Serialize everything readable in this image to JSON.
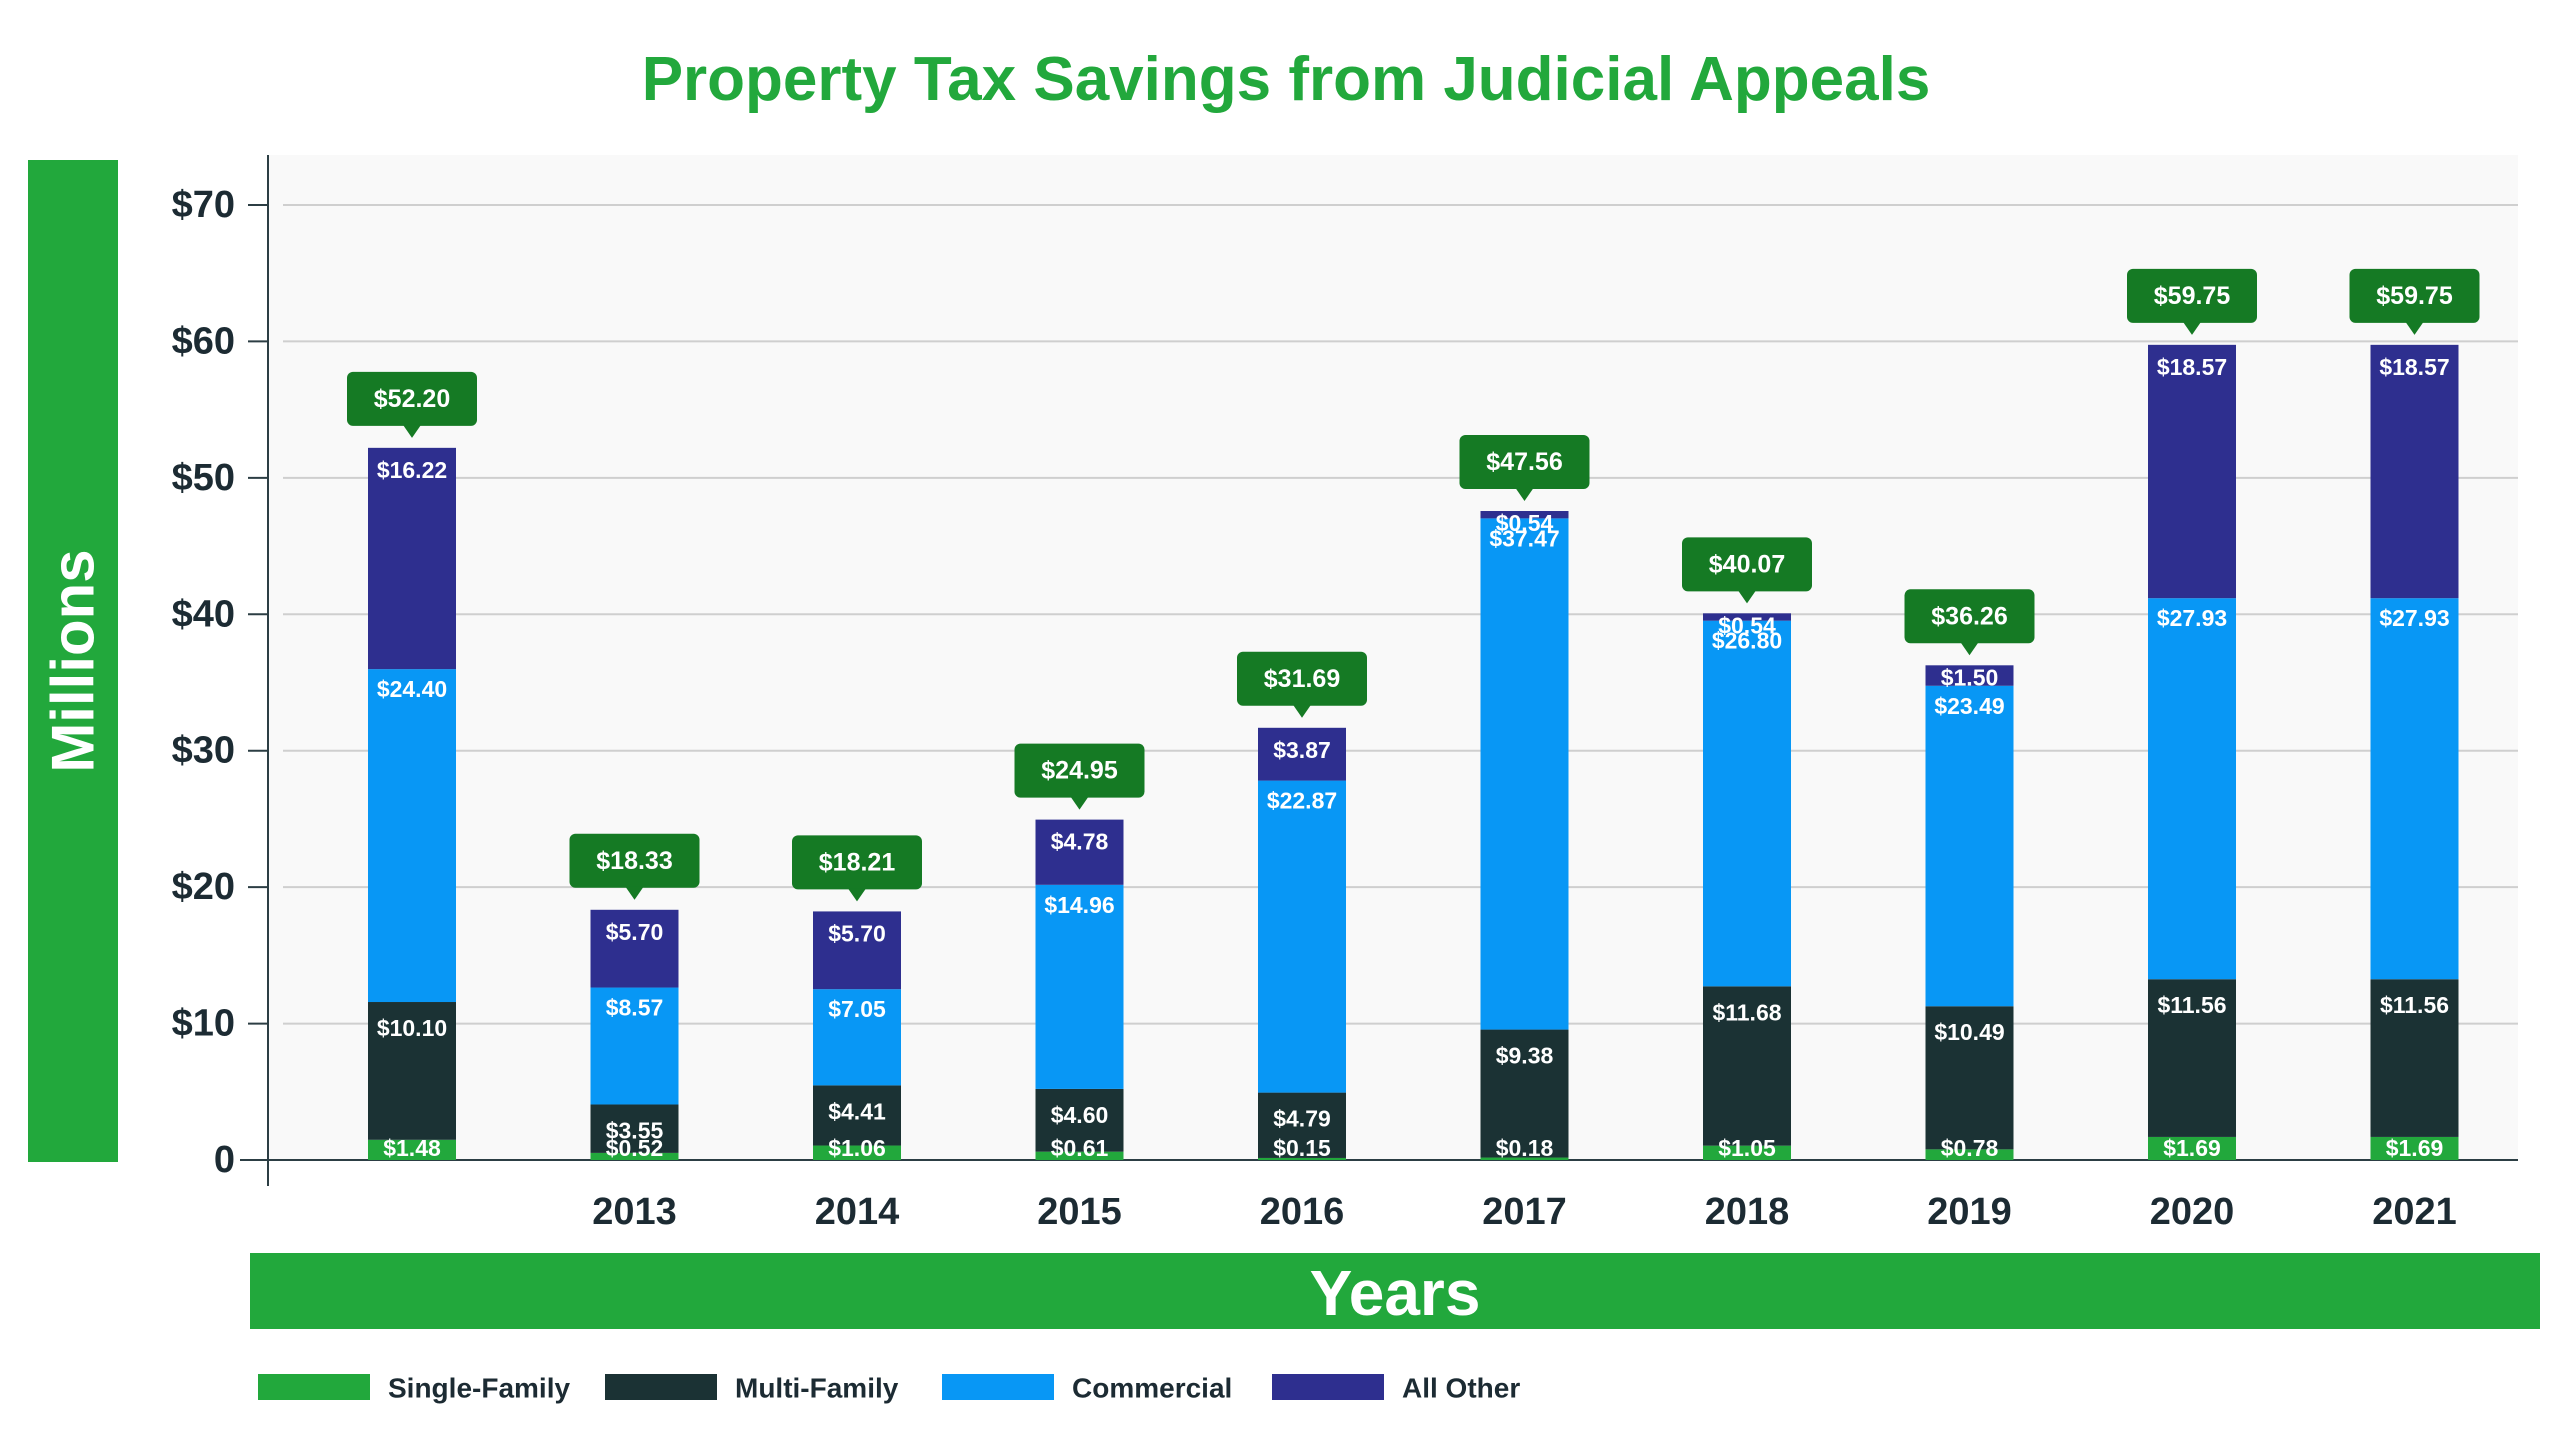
{
  "chart_data": {
    "type": "bar",
    "stacked": true,
    "title": "Property Tax Savings from Judicial Appeals",
    "xlabel": "Years",
    "ylabel": "Millions",
    "ylim": [
      0,
      70
    ],
    "y_ticks": [
      0,
      10,
      20,
      30,
      40,
      50,
      60,
      70
    ],
    "y_tick_labels": [
      "0",
      "$10",
      "$20",
      "$30",
      "$40",
      "$50",
      "$60",
      "$70"
    ],
    "grid": true,
    "categories": [
      "",
      "2013",
      "2014",
      "2015",
      "2016",
      "2017",
      "2018",
      "2019",
      "2020",
      "2021"
    ],
    "series": [
      {
        "name": "Single-Family",
        "color": "#22a83c",
        "values": [
          1.48,
          0.52,
          1.06,
          0.61,
          0.15,
          0.18,
          1.05,
          0.78,
          1.69,
          1.69
        ],
        "labels": [
          "$1.48",
          "$0.52",
          "$1.06",
          "$0.61",
          "$0.15",
          "$0.18",
          "$1.05",
          "$0.78",
          "$1.69",
          "$1.69"
        ]
      },
      {
        "name": "Multi-Family",
        "color": "#1b3234",
        "values": [
          10.1,
          3.55,
          4.41,
          4.6,
          4.79,
          9.38,
          11.68,
          10.49,
          11.56,
          11.56
        ],
        "labels": [
          "$10.10",
          "$3.55",
          "$4.41",
          "$4.60",
          "$4.79",
          "$9.38",
          "$11.68",
          "$10.49",
          "$11.56",
          "$11.56"
        ]
      },
      {
        "name": "Commercial",
        "color": "#0897f5",
        "values": [
          24.4,
          8.57,
          7.05,
          14.96,
          22.87,
          37.47,
          26.8,
          23.49,
          27.93,
          27.93
        ],
        "labels": [
          "$24.40",
          "$8.57",
          "$7.05",
          "$14.96",
          "$22.87",
          "$37.47",
          "$26.80",
          "$23.49",
          "$27.93",
          "$27.93"
        ]
      },
      {
        "name": "All Other",
        "color": "#2e2f8f",
        "values": [
          16.22,
          5.7,
          5.7,
          4.78,
          3.87,
          0.54,
          0.54,
          1.5,
          18.57,
          18.57
        ],
        "labels": [
          "$16.22",
          "$5.70",
          "$5.70",
          "$4.78",
          "$3.87",
          "$0.54",
          "$0.54",
          "$1.50",
          "$18.57",
          "$18.57"
        ]
      }
    ],
    "totals": [
      52.2,
      18.33,
      18.21,
      24.95,
      31.69,
      47.56,
      40.07,
      36.26,
      59.75,
      59.75
    ],
    "total_labels": [
      "$52.20",
      "$18.33",
      "$18.21",
      "$24.95",
      "$31.69",
      "$47.56",
      "$40.07",
      "$36.26",
      "$59.75",
      "$59.75"
    ],
    "legend_position": "bottom-left"
  },
  "colors": {
    "title": "#22a83c",
    "axis_banner": "#22a83c",
    "callout": "#157a24",
    "text_dark": "#1c2b33",
    "plot_bg": "#f9f9f9",
    "grid": "#cfcfcf"
  }
}
